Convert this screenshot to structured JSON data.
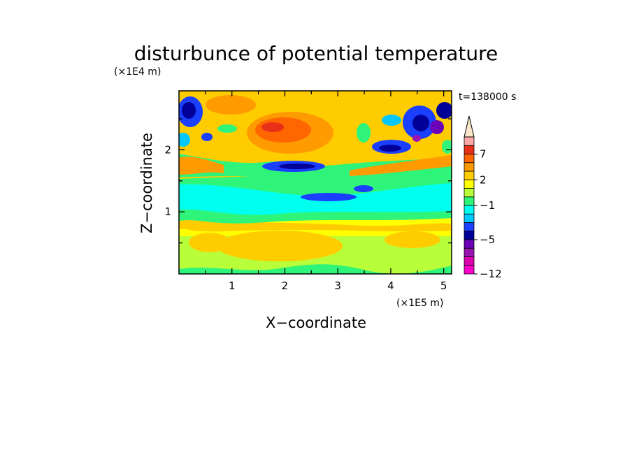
{
  "chart_data": {
    "type": "heatmap",
    "title": "disturbunce of potential temperature",
    "xlabel": "X−coordinate",
    "ylabel": "Z−coordinate",
    "x_unit": "(×1E5 m)",
    "y_unit": "(×1E4 m)",
    "time_label": "t=138000 s",
    "xlim": [
      0,
      5.15
    ],
    "ylim": [
      0,
      2.95
    ],
    "xticks": [
      1,
      2,
      3,
      4,
      5
    ],
    "xtick_labels": [
      "1",
      "2",
      "3",
      "4",
      "5"
    ],
    "yticks": [
      1,
      2
    ],
    "ytick_labels": [
      "1",
      "2"
    ],
    "colorbar": {
      "levels": [
        -12,
        -10,
        -8,
        -6,
        -5,
        -4,
        -3,
        -2,
        -1,
        0,
        1,
        2,
        3,
        5,
        7,
        9,
        11
      ],
      "colors": [
        "#ff00cc",
        "#dd00b0",
        "#9a14b4",
        "#6b00b8",
        "#000099",
        "#1a3fff",
        "#00c8ff",
        "#00ffee",
        "#2ef57a",
        "#b8ff3a",
        "#ffff00",
        "#ffcc00",
        "#ff9a00",
        "#ff6600",
        "#e83018",
        "#ffa8a8"
      ],
      "extend_top_color": "#f8e6c8",
      "tick_labels": [
        "−12",
        "−5",
        "−1",
        "2",
        "7"
      ],
      "tick_values": [
        -12,
        -5,
        -1,
        2,
        7
      ]
    },
    "field_description": [
      {
        "z_range": [
          0,
          1.0
        ],
        "value_range": [
          0,
          2
        ]
      },
      {
        "z_range": [
          1.0,
          1.45
        ],
        "value_range": [
          -1,
          0
        ]
      },
      {
        "z_range": [
          1.45,
          2.05
        ],
        "value_range": [
          -5,
          7
        ]
      },
      {
        "z_range": [
          2.05,
          2.95
        ],
        "value_range": [
          -10,
          9
        ]
      }
    ]
  }
}
